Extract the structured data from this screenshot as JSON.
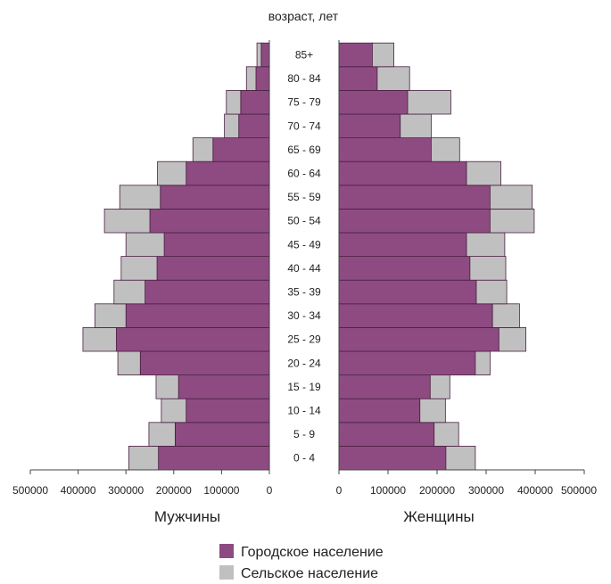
{
  "chart_data": {
    "type": "bar",
    "subtype": "population-pyramid",
    "title": "возраст, лет",
    "categories": [
      "0 - 4",
      "5 - 9",
      "10 - 14",
      "15 - 19",
      "20 - 24",
      "25 - 29",
      "30 - 34",
      "35 - 39",
      "40 - 44",
      "45 - 49",
      "50 - 54",
      "55 - 59",
      "60 - 64",
      "65 - 69",
      "70 - 74",
      "75 - 79",
      "80 - 84",
      "85+"
    ],
    "left_panel": {
      "label": "Мужчины",
      "xlim": [
        500000,
        0
      ],
      "ticks": [
        "500000",
        "400000",
        "300000",
        "200000",
        "100000",
        "0"
      ],
      "series": [
        {
          "name": "Городское население",
          "values": [
            232000,
            197000,
            174000,
            190000,
            270000,
            320000,
            300000,
            260000,
            235000,
            220000,
            250000,
            228000,
            174000,
            118000,
            64000,
            60000,
            28000,
            17000
          ]
        },
        {
          "name": "Сельское население",
          "values": [
            62000,
            55000,
            52000,
            47000,
            47000,
            70000,
            65000,
            65000,
            75000,
            80000,
            95000,
            85000,
            60000,
            42000,
            30000,
            30000,
            20000,
            9000
          ]
        }
      ]
    },
    "right_panel": {
      "label": "Женщины",
      "xlim": [
        0,
        500000
      ],
      "ticks": [
        "0",
        "100000",
        "200000",
        "300000",
        "400000",
        "500000"
      ],
      "series": [
        {
          "name": "Городское население",
          "values": [
            218000,
            194000,
            165000,
            186000,
            278000,
            326000,
            313000,
            280000,
            267000,
            260000,
            308000,
            308000,
            260000,
            188000,
            125000,
            140000,
            78000,
            68000
          ]
        },
        {
          "name": "Сельское население",
          "values": [
            60000,
            50000,
            52000,
            40000,
            30000,
            55000,
            55000,
            62000,
            73000,
            78000,
            90000,
            86000,
            70000,
            58000,
            63000,
            88000,
            66000,
            44000
          ]
        }
      ]
    },
    "legend": {
      "placement": "bottom",
      "items": [
        "Городское население",
        "Сельское население"
      ]
    },
    "colors": {
      "urban": "#8e4b82",
      "rural": "#c0c0c0",
      "edge": "#4a1f42",
      "axis": "#444444"
    },
    "grid": false
  }
}
